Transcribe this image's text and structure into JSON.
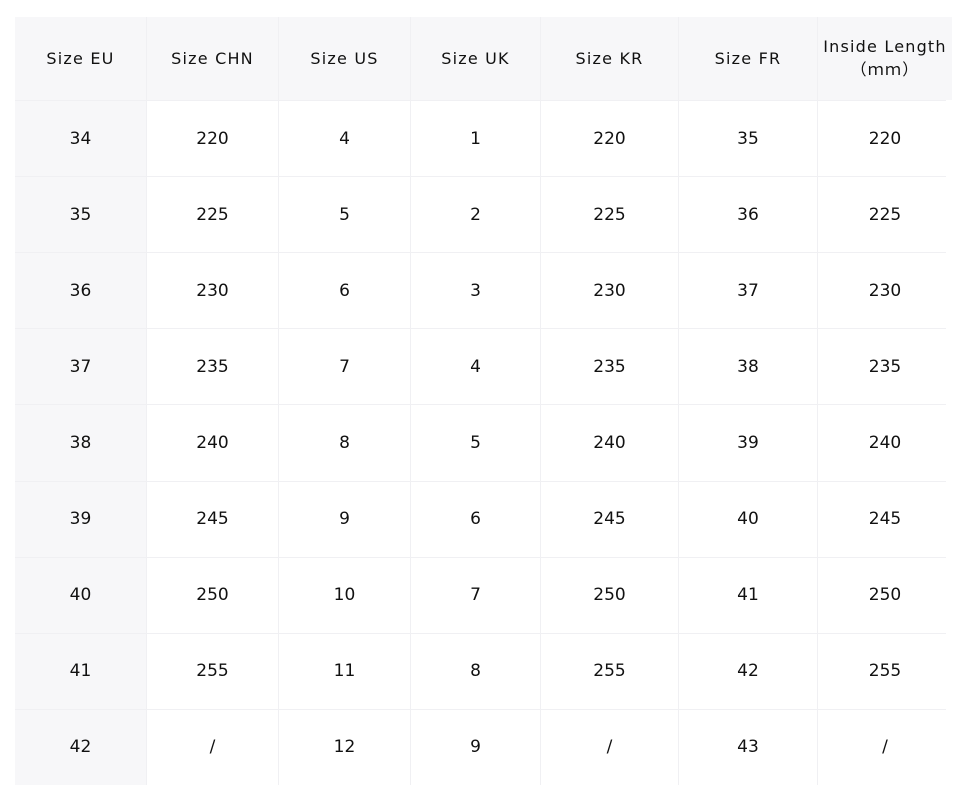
{
  "table": {
    "header": [
      "Size EU",
      "Size CHN",
      "Size US",
      "Size UK",
      "Size KR",
      "Size FR",
      "Inside Length"
    ],
    "header_unit": "（ｍｍ）",
    "rows": [
      [
        "34",
        "220",
        "4",
        "1",
        "220",
        "35",
        "220"
      ],
      [
        "35",
        "225",
        "5",
        "2",
        "225",
        "36",
        "225"
      ],
      [
        "36",
        "230",
        "6",
        "3",
        "230",
        "37",
        "230"
      ],
      [
        "37",
        "235",
        "7",
        "4",
        "235",
        "38",
        "235"
      ],
      [
        "38",
        "240",
        "8",
        "5",
        "240",
        "39",
        "240"
      ],
      [
        "39",
        "245",
        "9",
        "6",
        "245",
        "40",
        "245"
      ],
      [
        "40",
        "250",
        "10",
        "7",
        "250",
        "41",
        "250"
      ],
      [
        "41",
        "255",
        "11",
        "8",
        "255",
        "42",
        "255"
      ],
      [
        "42",
        "/",
        "12",
        "9",
        "/",
        "43",
        "/"
      ]
    ]
  }
}
